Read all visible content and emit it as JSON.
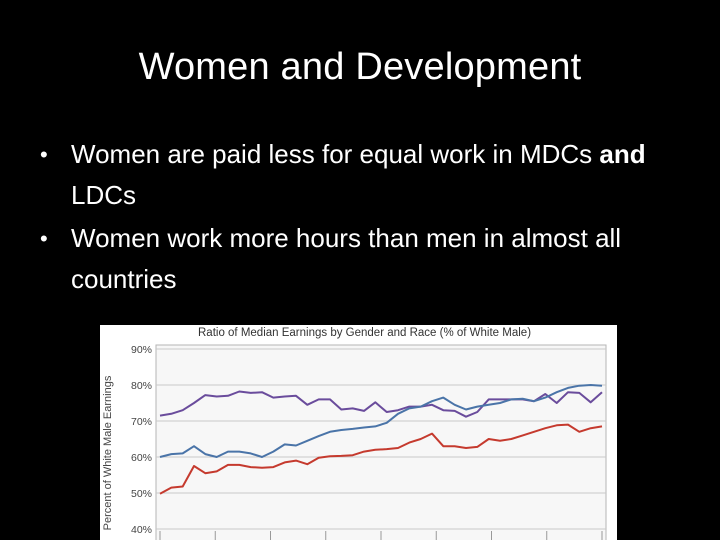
{
  "slide": {
    "title": "Women and Development",
    "bullets": [
      {
        "parts": [
          {
            "text": "Women are paid less for equal work in MDCs ",
            "bold": false
          },
          {
            "text": "and",
            "bold": true
          },
          {
            "text": " LDCs",
            "bold": false
          }
        ]
      },
      {
        "parts": [
          {
            "text": "Women work more hours than men in almost all countries",
            "bold": false
          }
        ]
      }
    ],
    "bullet_symbol": "•"
  },
  "colors": {
    "background": "#000000",
    "text": "#ffffff",
    "purple_series": "#6a4c9c",
    "blue_series": "#4a74a8",
    "red_series": "#c53a2e"
  },
  "chart_data": {
    "type": "line",
    "title": "Ratio of Median Earnings by Gender and Race (% of  White Male)",
    "ylabel": "Percent of White Male Earnings",
    "ylim": [
      40,
      90
    ],
    "yticks": [
      "90%",
      "80%",
      "70%",
      "60%",
      "50%",
      "40%"
    ],
    "grid": true,
    "x": [
      1,
      2,
      3,
      4,
      5,
      6,
      7,
      8,
      9,
      10,
      11,
      12,
      13,
      14,
      15,
      16,
      17,
      18,
      19,
      20,
      21,
      22,
      23,
      24,
      25,
      26,
      27,
      28,
      29,
      30,
      31,
      32,
      33,
      34,
      35,
      36,
      37,
      38,
      39,
      40
    ],
    "series": [
      {
        "color": "#6a4c9c",
        "values": [
          71.5,
          72,
          73,
          75,
          77.2,
          76.8,
          77,
          78.2,
          77.8,
          78,
          76.5,
          76.8,
          77,
          74.5,
          76,
          76,
          73.2,
          73.5,
          72.8,
          75.2,
          72.5,
          73,
          74,
          74,
          74.5,
          73,
          72.8,
          71.2,
          72.5,
          76,
          76,
          76,
          76,
          75.5,
          77.5,
          75,
          78,
          77.8,
          75.2,
          78
        ]
      },
      {
        "color": "#4a74a8",
        "values": [
          60,
          60.8,
          61,
          63,
          60.8,
          60,
          61.5,
          61.5,
          61,
          60,
          61.5,
          63.5,
          63.2,
          64.5,
          65.8,
          67,
          67.5,
          67.8,
          68.2,
          68.5,
          69.5,
          72,
          73.5,
          74,
          75.5,
          76.5,
          74.5,
          73.2,
          74,
          74.5,
          75,
          76,
          76.2,
          75.5,
          76.5,
          78,
          79.2,
          79.8,
          80,
          79.8
        ]
      },
      {
        "color": "#c53a2e",
        "values": [
          49.8,
          51.5,
          51.8,
          57.5,
          55.5,
          56,
          57.8,
          57.8,
          57.2,
          57,
          57.2,
          58.5,
          59,
          58,
          59.8,
          60.2,
          60.3,
          60.5,
          61.5,
          62,
          62.2,
          62.5,
          64,
          65,
          66.5,
          63,
          63,
          62.5,
          62.8,
          65,
          64.5,
          65,
          66,
          67,
          68,
          68.8,
          69,
          67,
          68,
          68.5
        ]
      }
    ]
  }
}
